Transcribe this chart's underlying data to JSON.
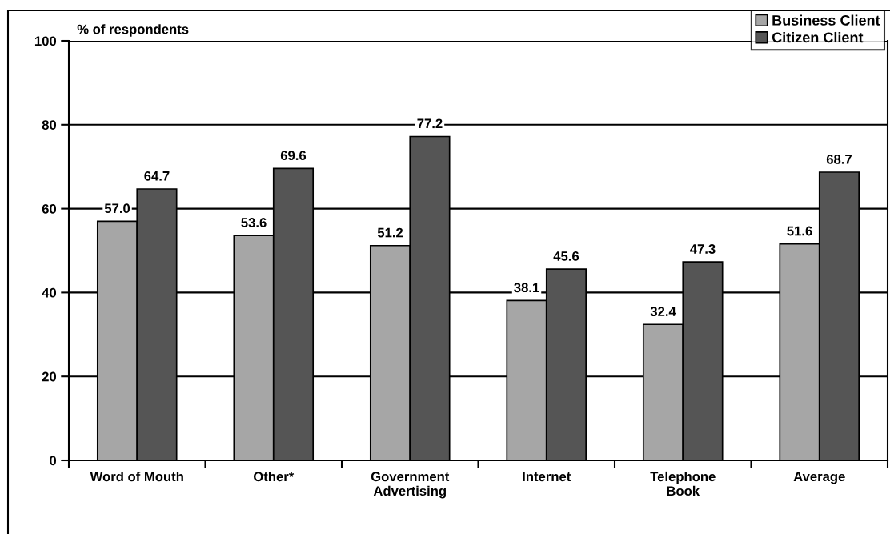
{
  "chart_data": {
    "type": "bar",
    "ylabel": "% of respondents",
    "categories": [
      "Word of Mouth",
      "Other*",
      "Government\nAdvertising",
      "Internet",
      "Telephone\nBook",
      "Average"
    ],
    "series": [
      {
        "name": "Business Client",
        "color": "#a6a6a6",
        "values": [
          57.0,
          53.6,
          51.2,
          38.1,
          32.4,
          51.6
        ],
        "value_labels": [
          "57.0",
          "53.6",
          "51.2",
          "38.1",
          "32.4",
          "51.6"
        ]
      },
      {
        "name": "Citizen Client",
        "color": "#555555",
        "values": [
          64.7,
          69.6,
          77.2,
          45.6,
          47.3,
          68.7
        ],
        "value_labels": [
          "64.7",
          "69.6",
          "77.2",
          "45.6",
          "47.3",
          "68.7"
        ]
      }
    ],
    "ylim": [
      0,
      100
    ],
    "yticks": [
      0,
      20,
      40,
      60,
      80,
      100
    ],
    "grid": "y",
    "legend": "top right"
  }
}
